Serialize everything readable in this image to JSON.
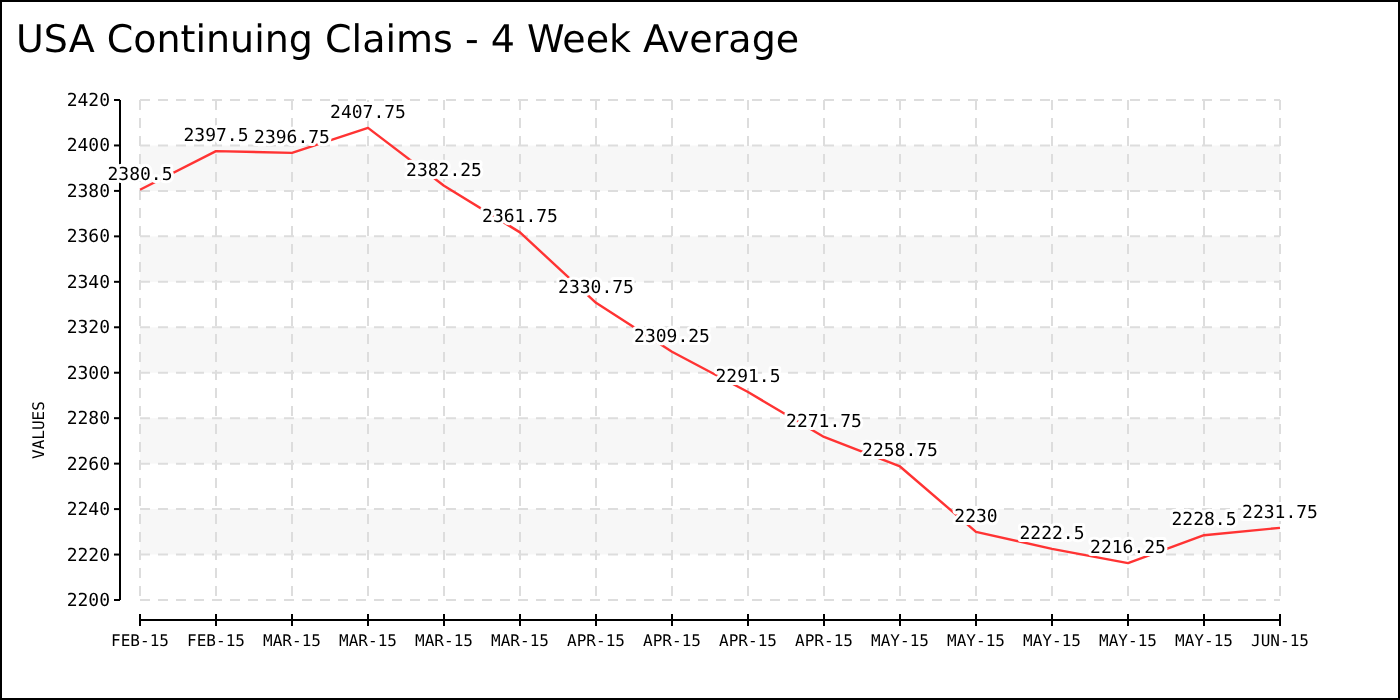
{
  "chart_data": {
    "type": "line",
    "title": "USA Continuing Claims - 4 Week Average",
    "ylabel": "VALUES",
    "categories": [
      "FEB-15",
      "FEB-15",
      "MAR-15",
      "MAR-15",
      "MAR-15",
      "MAR-15",
      "APR-15",
      "APR-15",
      "APR-15",
      "APR-15",
      "MAY-15",
      "MAY-15",
      "MAY-15",
      "MAY-15",
      "MAY-15",
      "JUN-15"
    ],
    "series": [
      {
        "color": "#ff3333",
        "values": [
          2380.5,
          2397.5,
          2396.75,
          2407.75,
          2382.25,
          2361.75,
          2330.75,
          2309.25,
          2291.5,
          2271.75,
          2258.75,
          2230,
          2222.5,
          2216.25,
          2228.5,
          2231.75
        ]
      }
    ],
    "ylim": [
      2200,
      2420
    ],
    "yticks": [
      2200,
      2220,
      2240,
      2260,
      2280,
      2300,
      2320,
      2340,
      2360,
      2380,
      2400,
      2420
    ],
    "grid": true,
    "data_labels": true,
    "marker": "none",
    "line_style": "solid"
  }
}
